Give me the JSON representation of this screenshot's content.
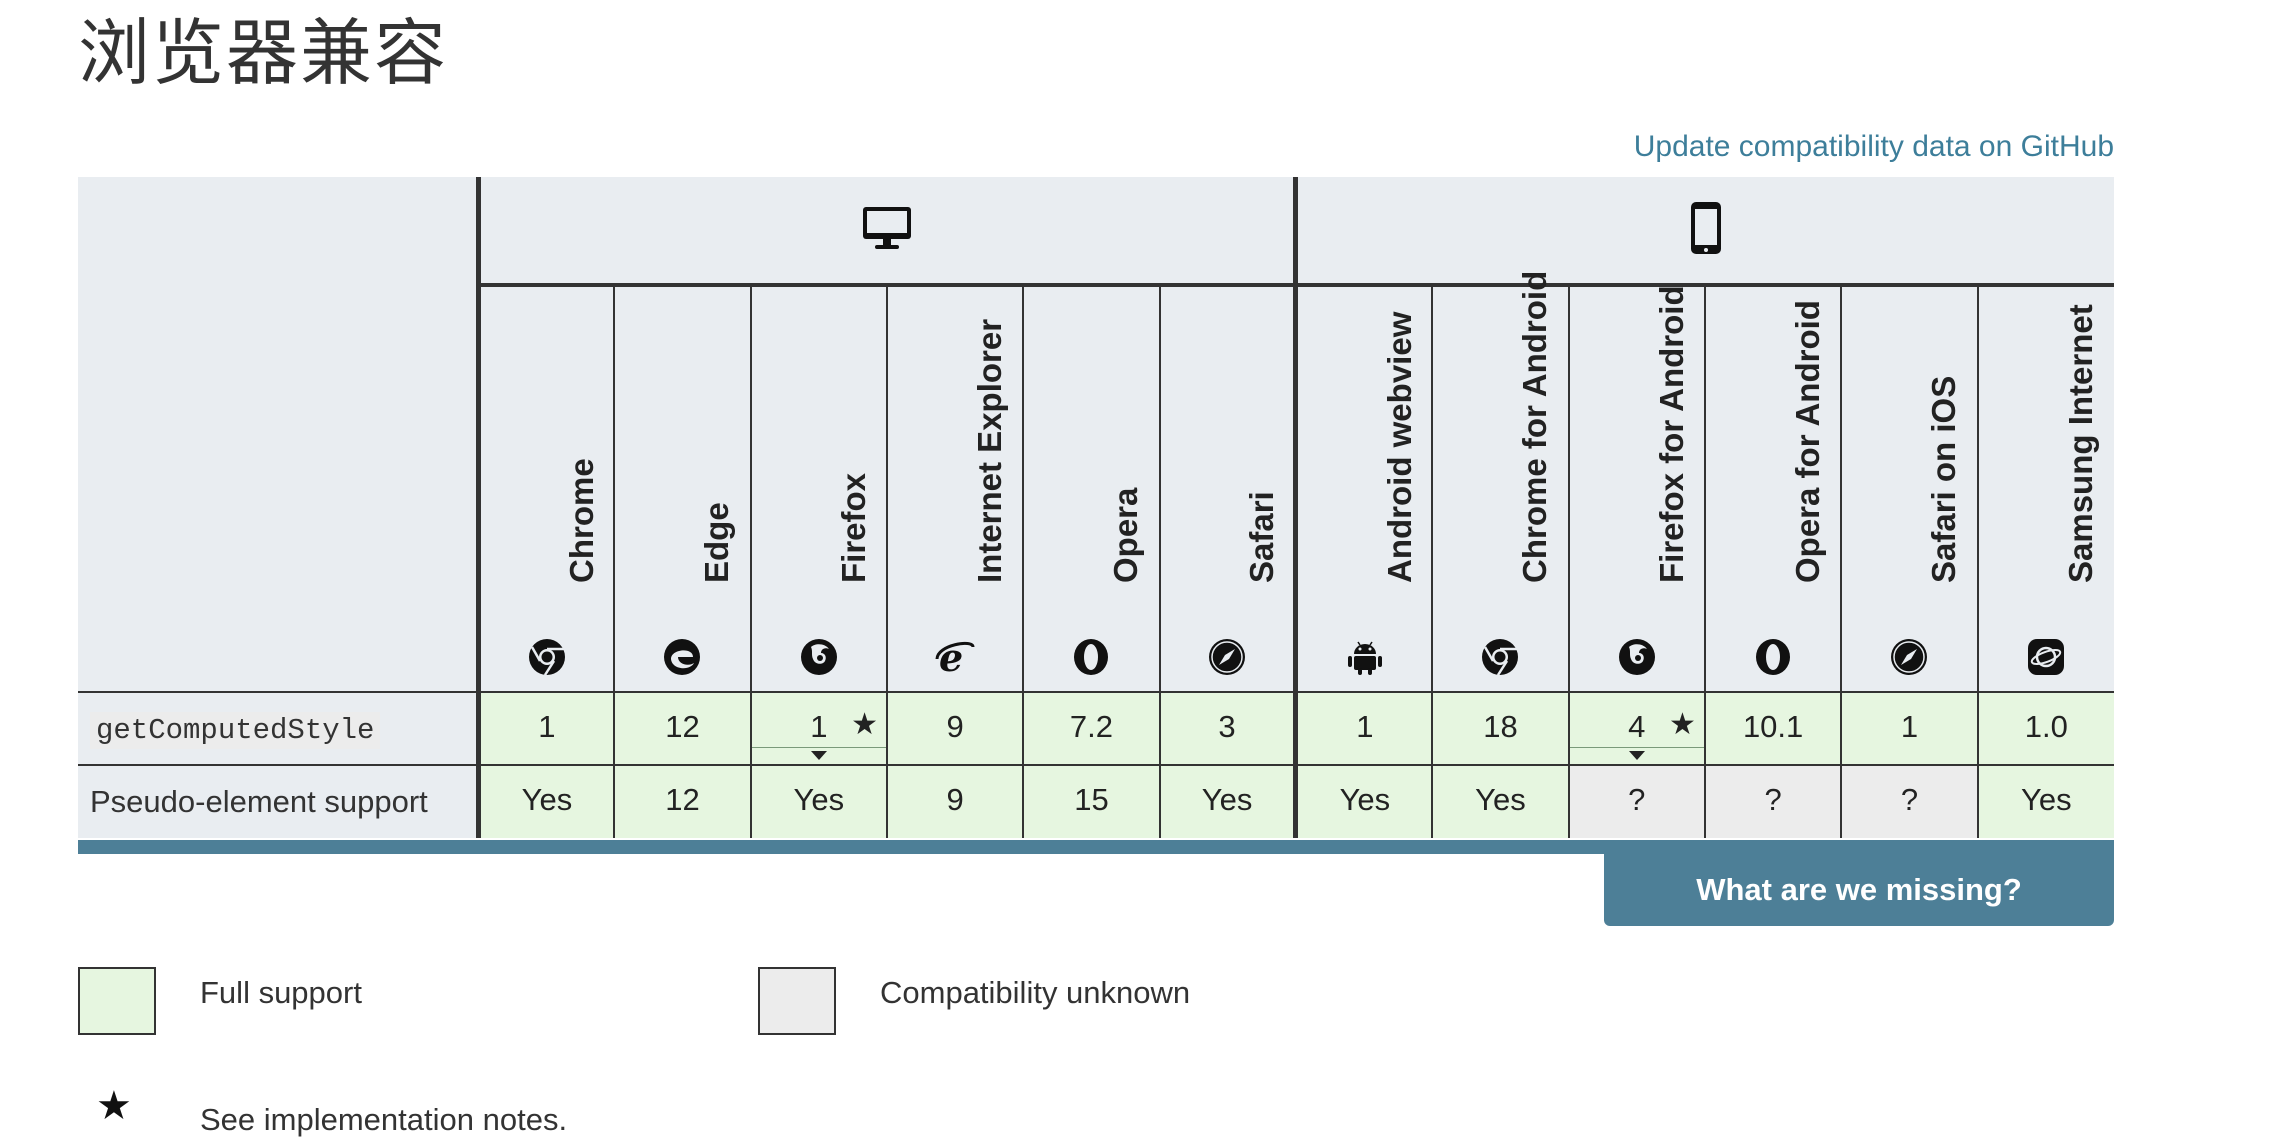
{
  "page": {
    "title": "浏览器兼容",
    "github_link": "Update compatibility data on GitHub",
    "missing_button": "What are we missing?"
  },
  "platforms": {
    "desktop_icon": "desktop-icon",
    "mobile_icon": "mobile-icon"
  },
  "browsers": [
    {
      "name": "Chrome",
      "icon": "chrome-icon"
    },
    {
      "name": "Edge",
      "icon": "edge-icon"
    },
    {
      "name": "Firefox",
      "icon": "firefox-icon"
    },
    {
      "name": "Internet Explorer",
      "icon": "ie-icon"
    },
    {
      "name": "Opera",
      "icon": "opera-icon"
    },
    {
      "name": "Safari",
      "icon": "safari-icon"
    },
    {
      "name": "Android webview",
      "icon": "android-icon"
    },
    {
      "name": "Chrome for Android",
      "icon": "chrome-icon"
    },
    {
      "name": "Firefox for Android",
      "icon": "firefox-icon"
    },
    {
      "name": "Opera for Android",
      "icon": "opera-icon"
    },
    {
      "name": "Safari on iOS",
      "icon": "safari-icon"
    },
    {
      "name": "Samsung Internet",
      "icon": "samsung-internet-icon"
    }
  ],
  "rows": [
    {
      "feature": "getComputedStyle",
      "is_code": true,
      "cells": [
        {
          "value": "1",
          "support": "full"
        },
        {
          "value": "12",
          "support": "full"
        },
        {
          "value": "1",
          "support": "full",
          "note": "*",
          "expandable": true
        },
        {
          "value": "9",
          "support": "full"
        },
        {
          "value": "7.2",
          "support": "full"
        },
        {
          "value": "3",
          "support": "full"
        },
        {
          "value": "1",
          "support": "full"
        },
        {
          "value": "18",
          "support": "full"
        },
        {
          "value": "4",
          "support": "full",
          "note": "*",
          "expandable": true
        },
        {
          "value": "10.1",
          "support": "full"
        },
        {
          "value": "1",
          "support": "full"
        },
        {
          "value": "1.0",
          "support": "full"
        }
      ]
    },
    {
      "feature": "Pseudo-element support",
      "is_code": false,
      "cells": [
        {
          "value": "Yes",
          "support": "full"
        },
        {
          "value": "12",
          "support": "full"
        },
        {
          "value": "Yes",
          "support": "full"
        },
        {
          "value": "9",
          "support": "full"
        },
        {
          "value": "15",
          "support": "full"
        },
        {
          "value": "Yes",
          "support": "full"
        },
        {
          "value": "Yes",
          "support": "full"
        },
        {
          "value": "Yes",
          "support": "full"
        },
        {
          "value": "?",
          "support": "unknown"
        },
        {
          "value": "?",
          "support": "unknown"
        },
        {
          "value": "?",
          "support": "unknown"
        },
        {
          "value": "Yes",
          "support": "full"
        }
      ]
    }
  ],
  "legend": {
    "full_support": "Full support",
    "unknown": "Compatibility unknown",
    "note_symbol": "★",
    "notes": "See implementation notes."
  },
  "colors": {
    "full": "#e6f6e0",
    "unknown": "#ececec",
    "header_bg": "#e9edf1",
    "accent": "#4d7f97",
    "link": "#3d7e9a"
  }
}
